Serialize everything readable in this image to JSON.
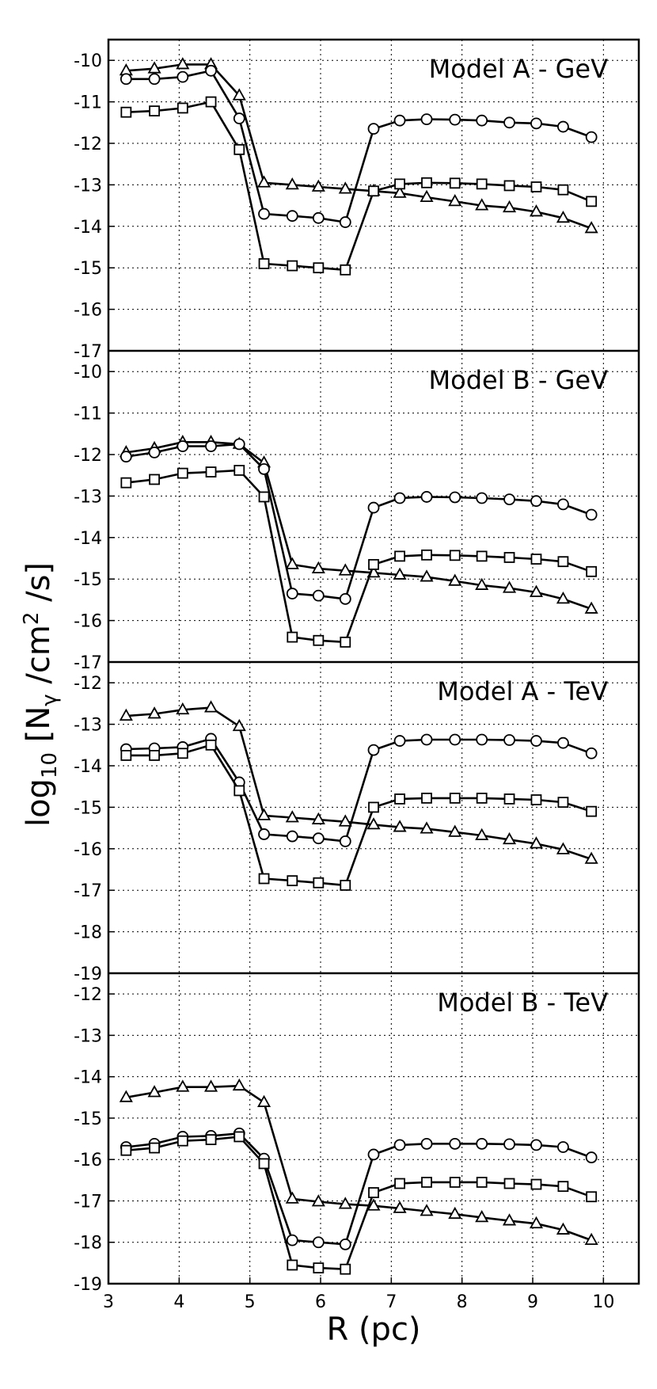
{
  "chart_data": {
    "type": "line",
    "xlabel": "R (pc)",
    "ylabel_main": "log",
    "ylabel_sub": "10",
    "ylabel_rest_1": " [N",
    "ylabel_gamma": "γ",
    "ylabel_rest_2": " /cm",
    "ylabel_sup": "2",
    "ylabel_rest_3": " /s]",
    "xlim": [
      3,
      10.5
    ],
    "x_ticks": [
      3,
      4,
      5,
      6,
      7,
      8,
      9,
      10
    ],
    "x": [
      3.25,
      3.65,
      4.05,
      4.45,
      4.85,
      5.2,
      5.6,
      5.97,
      6.35,
      6.75,
      7.12,
      7.5,
      7.9,
      8.28,
      8.67,
      9.05,
      9.43,
      9.83
    ],
    "panels": [
      {
        "title": "Model A - GeV",
        "ylim": [
          -17,
          -9.5
        ],
        "y_ticks": [
          -10,
          -11,
          -12,
          -13,
          -14,
          -15,
          -16,
          -17
        ],
        "series": [
          {
            "name": "triangles",
            "marker": "triangle",
            "values": [
              -10.25,
              -10.2,
              -10.1,
              -10.1,
              -10.85,
              -12.95,
              -13.0,
              -13.05,
              -13.1,
              -13.15,
              -13.2,
              -13.3,
              -13.4,
              -13.5,
              -13.55,
              -13.65,
              -13.8,
              -14.05
            ]
          },
          {
            "name": "circles",
            "marker": "circle",
            "values": [
              -10.45,
              -10.45,
              -10.4,
              -10.25,
              -11.4,
              -13.7,
              -13.75,
              -13.8,
              -13.9,
              -11.65,
              -11.45,
              -11.42,
              -11.43,
              -11.45,
              -11.5,
              -11.52,
              -11.6,
              -11.85
            ]
          },
          {
            "name": "squares",
            "marker": "square",
            "values": [
              -11.25,
              -11.22,
              -11.15,
              -11.0,
              -12.15,
              -14.9,
              -14.95,
              -15.0,
              -15.05,
              -13.15,
              -12.98,
              -12.95,
              -12.96,
              -12.98,
              -13.02,
              -13.05,
              -13.12,
              -13.4
            ]
          }
        ]
      },
      {
        "title": "Model B - GeV",
        "ylim": [
          -17,
          -9.5
        ],
        "y_ticks": [
          -10,
          -11,
          -12,
          -13,
          -14,
          -15,
          -16,
          -17
        ],
        "series": [
          {
            "name": "triangles",
            "marker": "triangle",
            "values": [
              -11.95,
              -11.85,
              -11.7,
              -11.7,
              -11.75,
              -12.2,
              -14.65,
              -14.75,
              -14.8,
              -14.85,
              -14.9,
              -14.95,
              -15.05,
              -15.15,
              -15.22,
              -15.32,
              -15.48,
              -15.72
            ]
          },
          {
            "name": "circles",
            "marker": "circle",
            "values": [
              -12.05,
              -11.95,
              -11.8,
              -11.8,
              -11.75,
              -12.35,
              -15.35,
              -15.4,
              -15.48,
              -13.28,
              -13.05,
              -13.02,
              -13.03,
              -13.05,
              -13.08,
              -13.12,
              -13.2,
              -13.45
            ]
          },
          {
            "name": "squares",
            "marker": "square",
            "values": [
              -12.68,
              -12.6,
              -12.45,
              -12.42,
              -12.38,
              -13.02,
              -16.4,
              -16.48,
              -16.52,
              -14.65,
              -14.45,
              -14.42,
              -14.43,
              -14.45,
              -14.48,
              -14.52,
              -14.58,
              -14.82
            ]
          }
        ]
      },
      {
        "title": "Model A - TeV",
        "ylim": [
          -19,
          -11.5
        ],
        "y_ticks": [
          -12,
          -13,
          -14,
          -15,
          -16,
          -17,
          -18,
          -19
        ],
        "series": [
          {
            "name": "triangles",
            "marker": "triangle",
            "values": [
              -12.8,
              -12.75,
              -12.65,
              -12.6,
              -13.05,
              -15.2,
              -15.25,
              -15.3,
              -15.35,
              -15.42,
              -15.48,
              -15.52,
              -15.6,
              -15.68,
              -15.78,
              -15.88,
              -16.02,
              -16.25
            ]
          },
          {
            "name": "circles",
            "marker": "circle",
            "values": [
              -13.6,
              -13.58,
              -13.55,
              -13.35,
              -14.4,
              -15.65,
              -15.7,
              -15.75,
              -15.82,
              -13.62,
              -13.4,
              -13.37,
              -13.37,
              -13.37,
              -13.38,
              -13.4,
              -13.45,
              -13.7
            ]
          },
          {
            "name": "squares",
            "marker": "square",
            "values": [
              -13.75,
              -13.75,
              -13.7,
              -13.5,
              -14.6,
              -16.72,
              -16.77,
              -16.82,
              -16.88,
              -15.0,
              -14.8,
              -14.78,
              -14.78,
              -14.78,
              -14.8,
              -14.82,
              -14.88,
              -15.1
            ]
          }
        ]
      },
      {
        "title": "Model B - TeV",
        "ylim": [
          -19,
          -11.5
        ],
        "y_ticks": [
          -12,
          -13,
          -14,
          -15,
          -16,
          -17,
          -18,
          -19
        ],
        "series": [
          {
            "name": "triangles",
            "marker": "triangle",
            "values": [
              -14.5,
              -14.38,
              -14.25,
              -14.25,
              -14.22,
              -14.62,
              -16.95,
              -17.02,
              -17.08,
              -17.12,
              -17.18,
              -17.25,
              -17.32,
              -17.4,
              -17.48,
              -17.55,
              -17.7,
              -17.95
            ]
          },
          {
            "name": "circles",
            "marker": "circle",
            "values": [
              -15.7,
              -15.62,
              -15.45,
              -15.43,
              -15.37,
              -15.98,
              -17.95,
              -18.0,
              -18.05,
              -15.88,
              -15.65,
              -15.62,
              -15.62,
              -15.62,
              -15.63,
              -15.65,
              -15.7,
              -15.95
            ]
          },
          {
            "name": "squares",
            "marker": "square",
            "values": [
              -15.78,
              -15.72,
              -15.55,
              -15.52,
              -15.45,
              -16.1,
              -18.55,
              -18.62,
              -18.65,
              -16.8,
              -16.58,
              -16.55,
              -16.55,
              -16.55,
              -16.58,
              -16.6,
              -16.65,
              -16.9
            ]
          }
        ]
      }
    ]
  }
}
